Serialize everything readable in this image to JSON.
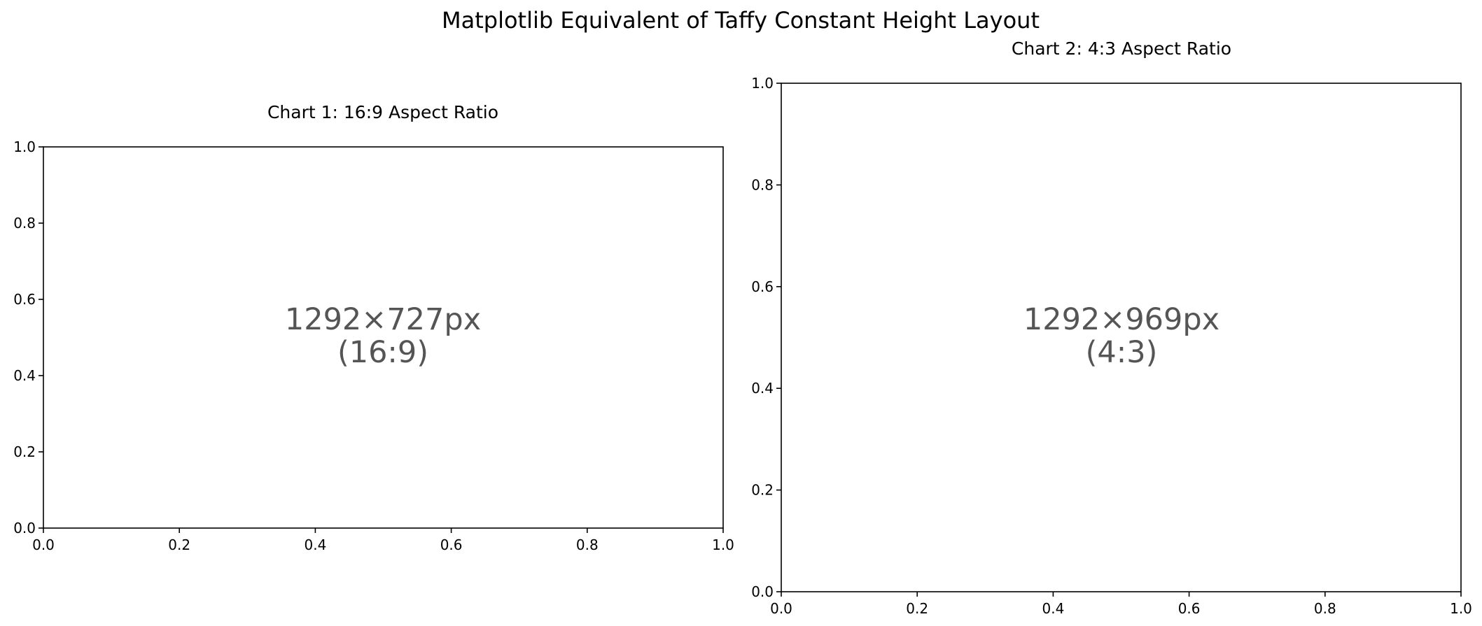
{
  "figure": {
    "suptitle": "Matplotlib Equivalent of Taffy Constant Height Layout"
  },
  "chart_data": [
    {
      "type": "scatter",
      "title": "Chart 1: 16:9 Aspect Ratio",
      "xlabel": "",
      "ylabel": "",
      "xlim": [
        0.0,
        1.0
      ],
      "ylim": [
        0.0,
        1.0
      ],
      "x_ticks": [
        "0.0",
        "0.2",
        "0.4",
        "0.6",
        "0.8",
        "1.0"
      ],
      "y_ticks": [
        "0.0",
        "0.2",
        "0.4",
        "0.6",
        "0.8",
        "1.0"
      ],
      "series": [],
      "grid": false,
      "annotation": {
        "line1": "1292×727px",
        "line2": "(16:9)",
        "color": "#555555"
      }
    },
    {
      "type": "scatter",
      "title": "Chart 2: 4:3 Aspect Ratio",
      "xlabel": "",
      "ylabel": "",
      "xlim": [
        0.0,
        1.0
      ],
      "ylim": [
        0.0,
        1.0
      ],
      "x_ticks": [
        "0.0",
        "0.2",
        "0.4",
        "0.6",
        "0.8",
        "1.0"
      ],
      "y_ticks": [
        "0.0",
        "0.2",
        "0.4",
        "0.6",
        "0.8",
        "1.0"
      ],
      "series": [],
      "grid": false,
      "annotation": {
        "line1": "1292×969px",
        "line2": "(4:3)",
        "color": "#555555"
      }
    }
  ]
}
